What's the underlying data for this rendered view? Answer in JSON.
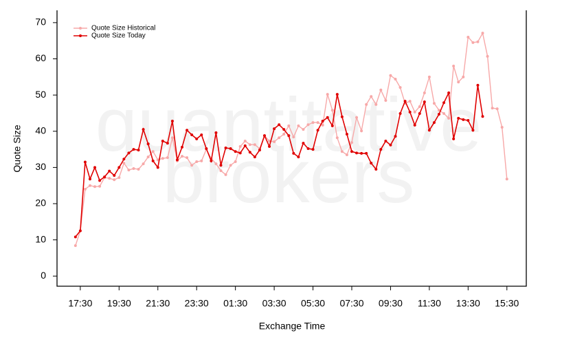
{
  "chart_data": {
    "type": "line",
    "watermark": [
      "quantitative",
      "brokers"
    ],
    "x_label": "Exchange Time",
    "y_label": "Quote Size",
    "x": [
      "17:15",
      "17:30",
      "17:45",
      "18:00",
      "18:15",
      "18:30",
      "18:45",
      "19:00",
      "19:15",
      "19:30",
      "19:45",
      "20:00",
      "20:15",
      "20:30",
      "20:45",
      "21:00",
      "21:15",
      "21:30",
      "21:45",
      "22:00",
      "22:15",
      "22:30",
      "22:45",
      "23:00",
      "23:15",
      "23:30",
      "23:45",
      "00:00",
      "00:15",
      "00:30",
      "00:45",
      "01:00",
      "01:15",
      "01:30",
      "01:45",
      "02:00",
      "02:15",
      "02:30",
      "02:45",
      "03:00",
      "03:15",
      "03:30",
      "03:45",
      "04:00",
      "04:15",
      "04:30",
      "04:45",
      "05:00",
      "05:15",
      "05:30",
      "05:45",
      "06:00",
      "06:15",
      "06:30",
      "06:45",
      "07:00",
      "07:15",
      "07:30",
      "07:45",
      "08:00",
      "08:15",
      "08:30",
      "08:45",
      "09:00",
      "09:15",
      "09:30",
      "09:45",
      "10:00",
      "10:15",
      "10:30",
      "10:45",
      "11:00",
      "11:15",
      "11:30",
      "11:45",
      "12:00",
      "12:15",
      "12:30",
      "12:45",
      "13:00",
      "13:15",
      "13:30",
      "13:45",
      "14:00",
      "14:15",
      "14:30",
      "14:45",
      "15:00",
      "15:15",
      "15:30"
    ],
    "series": [
      {
        "name": "Quote Size Historical",
        "color": "#f7a8a8",
        "values": [
          8.4,
          12.5,
          24,
          25,
          24.7,
          24.8,
          27.2,
          27,
          26.6,
          27.2,
          31.2,
          29.3,
          29.7,
          29.5,
          31,
          32.9,
          34.4,
          32.1,
          32.5,
          32.7,
          38.2,
          31.8,
          33.1,
          32.7,
          30.6,
          31.6,
          31.8,
          35,
          32.5,
          31,
          29.1,
          28,
          30.6,
          31.6,
          35.8,
          37.3,
          36.3,
          36.3,
          35.2,
          38.8,
          37.3,
          37.1,
          38.2,
          39.2,
          41.5,
          38.4,
          41.5,
          40.5,
          41.8,
          42.4,
          42.4,
          41.7,
          50.2,
          45.8,
          38.2,
          34.4,
          33.5,
          36.9,
          43.8,
          40.1,
          47.4,
          49.6,
          47.4,
          51.4,
          48.5,
          55.4,
          54.4,
          52.1,
          47.7,
          48.3,
          45.3,
          46.8,
          50.6,
          55,
          47.7,
          45.8,
          44.9,
          43.6,
          58,
          53.6,
          55,
          66,
          64.5,
          64.7,
          67.1,
          60.7,
          46.4,
          46.2,
          41.1,
          26.8
        ]
      },
      {
        "name": "Quote Size Today",
        "color": "#e00000",
        "values": [
          10.8,
          12.5,
          31.5,
          26.8,
          30,
          26.4,
          27.4,
          29,
          27.8,
          30,
          32.3,
          34,
          35,
          34.8,
          40.5,
          36.5,
          31.8,
          30,
          37.3,
          36.7,
          42.8,
          32.1,
          35.6,
          40.3,
          39,
          37.9,
          39,
          35.2,
          31.8,
          39.6,
          30.6,
          35.4,
          35.2,
          34.4,
          34,
          36,
          34.2,
          32.9,
          34.8,
          38.8,
          35.8,
          40.7,
          41.8,
          40.5,
          38.8,
          33.9,
          32.9,
          36.7,
          35.2,
          35,
          40.3,
          42.8,
          43.8,
          41.5,
          50.2,
          44,
          39.2,
          34.4,
          34,
          33.9,
          33.9,
          31.2,
          29.5,
          35,
          37.3,
          36.2,
          38.6,
          44.9,
          48.3,
          45.3,
          41.7,
          44.9,
          48.1,
          40.3,
          42.4,
          44.7,
          47.9,
          50.6,
          37.9,
          43.6,
          43.2,
          43,
          40.3,
          52.7,
          44.1,
          null,
          null,
          null,
          null,
          null
        ]
      }
    ],
    "xlim": [
      "16:18",
      "16:30"
    ],
    "xticks": [
      "17:30",
      "19:30",
      "21:30",
      "23:30",
      "01:30",
      "03:30",
      "05:30",
      "07:30",
      "09:30",
      "11:30",
      "13:30",
      "15:30"
    ],
    "ylim": [
      -2.8,
      73.4
    ],
    "yticks": [
      0,
      10,
      20,
      30,
      40,
      50,
      60,
      70
    ],
    "legend": "top-left"
  }
}
